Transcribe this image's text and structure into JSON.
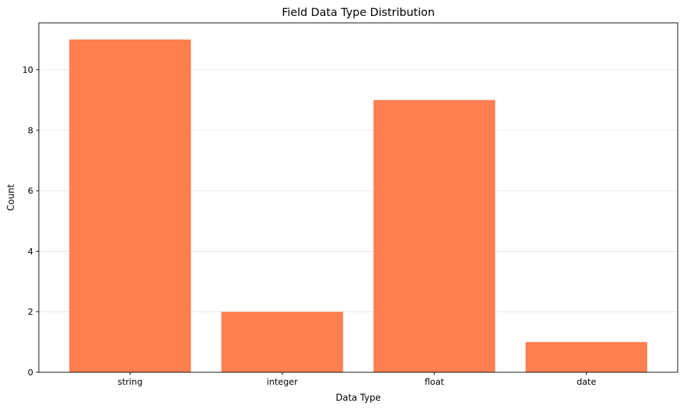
{
  "chart_data": {
    "type": "bar",
    "title": "Field Data Type Distribution",
    "xlabel": "Data Type",
    "ylabel": "Count",
    "categories": [
      "string",
      "integer",
      "float",
      "date"
    ],
    "values": [
      11,
      2,
      9,
      1
    ],
    "ylim": [
      0,
      11.55
    ],
    "yticks": [
      0,
      2,
      4,
      6,
      8,
      10
    ],
    "ytick_labels": [
      "0",
      "2",
      "4",
      "6",
      "8",
      "10"
    ],
    "grid": "y-axis, light",
    "legend": "none",
    "colors": {
      "bar": "#ff7f50",
      "grid": "#e6e6e6",
      "axis": "#000000"
    }
  }
}
